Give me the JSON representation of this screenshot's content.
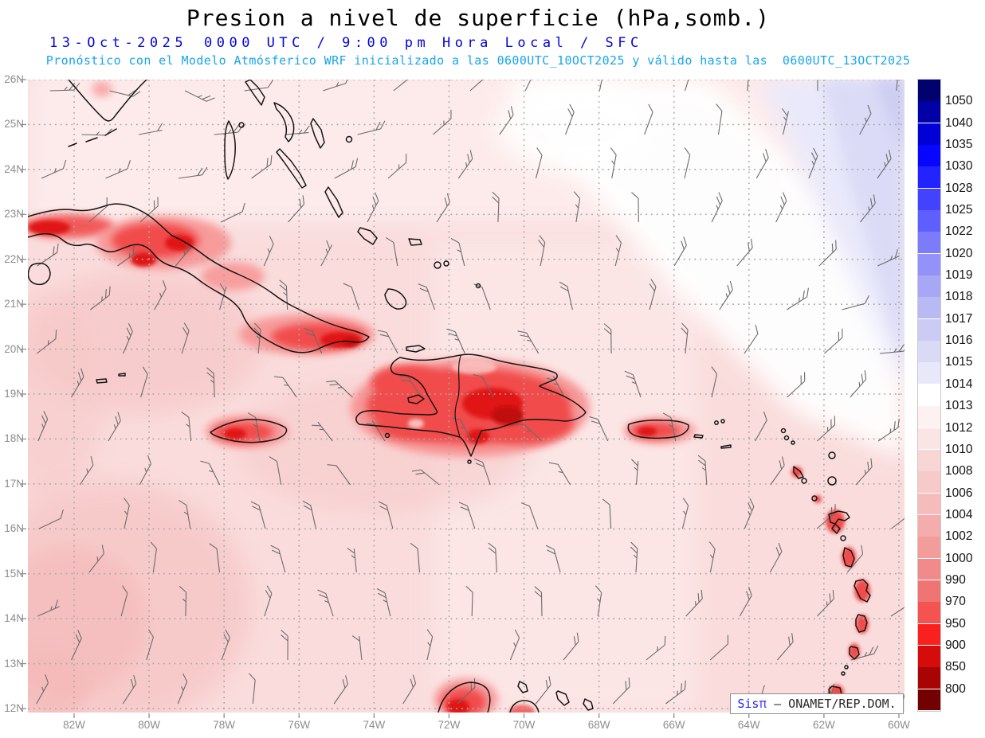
{
  "header": {
    "title": "Presion a nivel de superficie (hPa,somb.)",
    "date": "13-Oct-2025",
    "time_line": "0000 UTC / 9:00 pm Hora Local / SFC",
    "forecast_line": "Pronóstico con el Modelo Atmósferico WRF inicializado a las 0600UTC_10OCT2025 y válido hasta las  0600UTC_13OCT2025"
  },
  "axes": {
    "lat_labels": [
      "26N",
      "25N",
      "24N",
      "23N",
      "22N",
      "21N",
      "20N",
      "19N",
      "18N",
      "17N",
      "16N",
      "15N",
      "14N",
      "13N",
      "12N"
    ],
    "lon_labels": [
      "82W",
      "80W",
      "78W",
      "76W",
      "74W",
      "72W",
      "70W",
      "68W",
      "66W",
      "64W",
      "62W",
      "60W"
    ]
  },
  "colorbar": {
    "units": "hPa",
    "levels": [
      "1050",
      "1040",
      "1035",
      "1030",
      "1028",
      "1025",
      "1022",
      "1020",
      "1019",
      "1018",
      "1017",
      "1016",
      "1015",
      "1014",
      "1013",
      "1012",
      "1010",
      "1008",
      "1006",
      "1004",
      "1002",
      "1000",
      "990",
      "970",
      "950",
      "900",
      "850",
      "800"
    ],
    "segment_colors": [
      "#02026e",
      "#0000a4",
      "#0000d6",
      "#0707ff",
      "#2323ff",
      "#4343ff",
      "#5f5fff",
      "#7b7bfb",
      "#9292f8",
      "#a7a7f6",
      "#b9b9f4",
      "#cbcbf4",
      "#dadaf7",
      "#e8e8fa",
      "#ffffff",
      "#fdf1f1",
      "#fbe4e4",
      "#f9d6d6",
      "#f8c9c9",
      "#f6bbbb",
      "#f4acac",
      "#f29c9c",
      "#f18b8b",
      "#ef7474",
      "#f55252",
      "#fb2020",
      "#d60c0c",
      "#a90404",
      "#740101"
    ]
  },
  "attribution": {
    "brand": "Sis",
    "brand_symbol": "π",
    "text": "– ONAMET/REP.DOM."
  },
  "colors": {
    "title_text": "#000000",
    "datetime_text": "#0202dd",
    "forecast_text": "#18a5ef",
    "axis_text": "#8d8d8d",
    "grid": "#a9a9a9",
    "coastline": "#141414",
    "wind_barb": "#6b6b6b",
    "shade_pink_light": "#fdebeb",
    "shade_pink_base": "#fadcdc",
    "shade_pink_med": "#f7c9c9",
    "shade_pink_deep": "#f5b9b9",
    "shade_white_band": "#ffffff",
    "shade_lavender_1": "#e9e9fb",
    "shade_lavender_2": "#dbdbf7",
    "shade_lavender_3": "#cdcdf3",
    "island_red_glow": "#f79090",
    "island_red": "#f14b4b",
    "island_red_core": "#e01414",
    "island_red_dark": "#c00808"
  }
}
